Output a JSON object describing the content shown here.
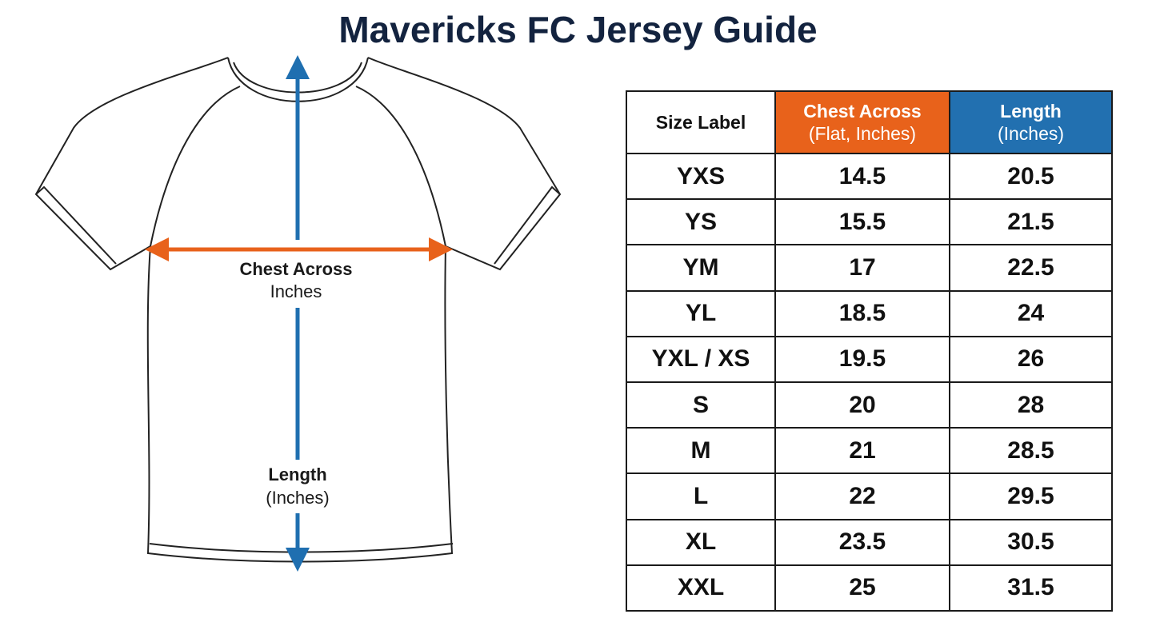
{
  "title": "Mavericks FC Jersey Guide",
  "diagram": {
    "chest_label": [
      "Chest Across",
      "Inches"
    ],
    "length_label": [
      "Length",
      "(Inches)"
    ]
  },
  "table": {
    "header": [
      [
        "Size Label"
      ],
      [
        "Chest Across",
        "(Flat, Inches)"
      ],
      [
        "Length",
        "(Inches)"
      ]
    ],
    "rows": [
      [
        "YXS",
        14.5,
        20.5
      ],
      [
        "YS",
        15.5,
        21.5
      ],
      [
        "YM",
        17,
        22.5
      ],
      [
        "YL",
        18.5,
        24
      ],
      [
        "YXL / XS",
        19.5,
        26
      ],
      [
        "S",
        20,
        28
      ],
      [
        "M",
        21,
        28.5
      ],
      [
        "L",
        22,
        29.5
      ],
      [
        "XL",
        23.5,
        30.5
      ],
      [
        "XXL",
        25,
        31.5
      ]
    ]
  }
}
